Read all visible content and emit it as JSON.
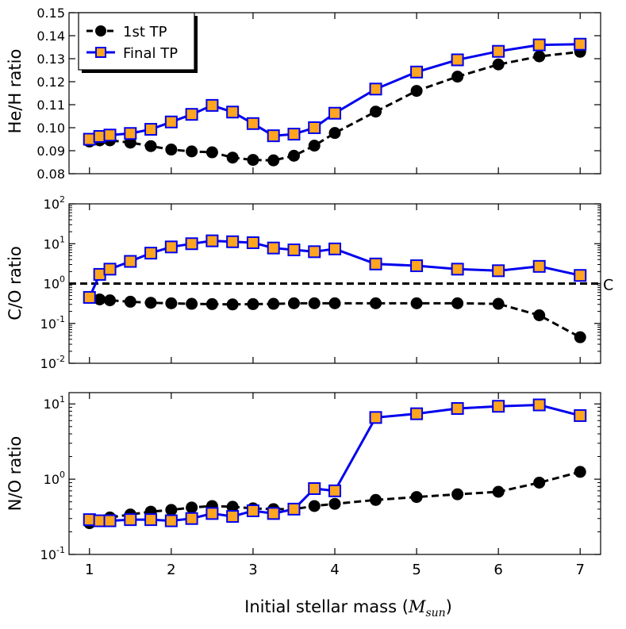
{
  "chart_data": [
    {
      "type": "line",
      "ylabel": "He/H ratio",
      "yscale": "linear",
      "ylim": [
        0.08,
        0.15
      ],
      "yticks": [
        "0.08",
        "0.09",
        "0.10",
        "0.11",
        "0.12",
        "0.13",
        "0.14",
        "0.15"
      ],
      "legend": {
        "placement": "top-left",
        "entries": [
          "1st TP",
          "Final TP"
        ]
      },
      "series": [
        {
          "name": "1st TP",
          "style": "black dashed circles",
          "x": [
            1,
            1.125,
            1.25,
            1.5,
            1.75,
            2,
            2.25,
            2.5,
            2.75,
            3,
            3.25,
            3.5,
            3.75,
            4,
            4.5,
            5,
            5.5,
            6,
            6.5,
            7
          ],
          "y": [
            0.094,
            0.0945,
            0.0945,
            0.0935,
            0.092,
            0.0905,
            0.0897,
            0.0893,
            0.087,
            0.086,
            0.0858,
            0.0878,
            0.0922,
            0.0977,
            0.107,
            0.116,
            0.1222,
            0.1275,
            0.131,
            0.133
          ]
        },
        {
          "name": "Final TP",
          "style": "blue solid squares",
          "x": [
            1,
            1.125,
            1.25,
            1.5,
            1.75,
            2,
            2.25,
            2.5,
            2.75,
            3,
            3.25,
            3.5,
            3.75,
            4,
            4.5,
            5,
            5.5,
            6,
            6.5,
            7
          ],
          "y": [
            0.095,
            0.0962,
            0.0968,
            0.0975,
            0.0993,
            0.1025,
            0.1058,
            0.1097,
            0.1068,
            0.1018,
            0.0965,
            0.0972,
            0.1,
            0.1063,
            0.1168,
            0.1242,
            0.1295,
            0.1332,
            0.136,
            0.1363
          ]
        }
      ]
    },
    {
      "type": "line",
      "ylabel": "C/O ratio",
      "yscale": "log",
      "ylim_exp": [
        -2,
        2
      ],
      "yticks": [
        {
          "base": "10",
          "exp": "2"
        },
        {
          "base": "10",
          "exp": "1"
        },
        {
          "base": "10",
          "exp": "0"
        },
        {
          "base": "10",
          "exp": "-1"
        },
        {
          "base": "10",
          "exp": "-2"
        }
      ],
      "reference_line": {
        "y": 1.0,
        "style": "black dashed",
        "label": "C"
      },
      "series": [
        {
          "name": "1st TP",
          "style": "black dashed circles",
          "x": [
            1,
            1.125,
            1.25,
            1.5,
            1.75,
            2,
            2.25,
            2.5,
            2.75,
            3,
            3.25,
            3.5,
            3.75,
            4,
            4.5,
            5,
            5.5,
            6,
            6.5,
            7
          ],
          "y": [
            0.45,
            0.4,
            0.38,
            0.35,
            0.33,
            0.32,
            0.31,
            0.305,
            0.3,
            0.305,
            0.31,
            0.32,
            0.32,
            0.32,
            0.32,
            0.32,
            0.32,
            0.31,
            0.16,
            0.045
          ]
        },
        {
          "name": "Final TP",
          "style": "blue solid squares",
          "x": [
            1,
            1.125,
            1.25,
            1.5,
            1.75,
            2,
            2.25,
            2.5,
            2.75,
            3,
            3.25,
            3.5,
            3.75,
            4,
            4.5,
            5,
            5.5,
            6,
            6.5,
            7
          ],
          "y": [
            0.45,
            1.7,
            2.3,
            3.6,
            5.8,
            8.3,
            10.0,
            11.8,
            11.2,
            10.6,
            7.8,
            7.0,
            6.3,
            7.4,
            3.1,
            2.8,
            2.3,
            2.1,
            2.7,
            1.6
          ]
        }
      ]
    },
    {
      "type": "line",
      "ylabel": "N/O ratio",
      "yscale": "log",
      "ylim_exp": [
        -1,
        1.15
      ],
      "xlabel_text": "Initial stellar mass (",
      "xlabel_symbol": "M",
      "xlabel_sub": "sun",
      "xlabel_close": ")",
      "xticks": [
        "1",
        "2",
        "3",
        "4",
        "5",
        "6",
        "7"
      ],
      "yticks": [
        {
          "base": "10",
          "exp": "1"
        },
        {
          "base": "10",
          "exp": "0"
        },
        {
          "base": "10",
          "exp": "-1"
        }
      ],
      "series": [
        {
          "name": "1st TP",
          "style": "black dashed circles",
          "x": [
            1,
            1.125,
            1.25,
            1.5,
            1.75,
            2,
            2.25,
            2.5,
            2.75,
            3,
            3.25,
            3.5,
            3.75,
            4,
            4.5,
            5,
            5.5,
            6,
            6.5,
            7
          ],
          "y": [
            0.26,
            0.28,
            0.31,
            0.34,
            0.37,
            0.39,
            0.42,
            0.44,
            0.43,
            0.41,
            0.4,
            0.4,
            0.44,
            0.47,
            0.53,
            0.58,
            0.63,
            0.68,
            0.9,
            1.25
          ]
        },
        {
          "name": "Final TP",
          "style": "blue solid squares",
          "x": [
            1,
            1.125,
            1.25,
            1.5,
            1.75,
            2,
            2.25,
            2.5,
            2.75,
            3,
            3.25,
            3.5,
            3.75,
            4,
            4.5,
            5,
            5.5,
            6,
            6.5,
            7
          ],
          "y": [
            0.29,
            0.28,
            0.28,
            0.29,
            0.29,
            0.28,
            0.3,
            0.35,
            0.32,
            0.38,
            0.35,
            0.4,
            0.75,
            0.7,
            6.6,
            7.4,
            8.7,
            9.3,
            9.7,
            7.0
          ]
        }
      ]
    }
  ],
  "x_axis": {
    "min": 0.75,
    "max": 7.25
  },
  "colors": {
    "first_tp": "#000000",
    "final_line": "#0000ee",
    "final_marker_fill": "#ffa520",
    "final_marker_edge": "#0000ee"
  }
}
